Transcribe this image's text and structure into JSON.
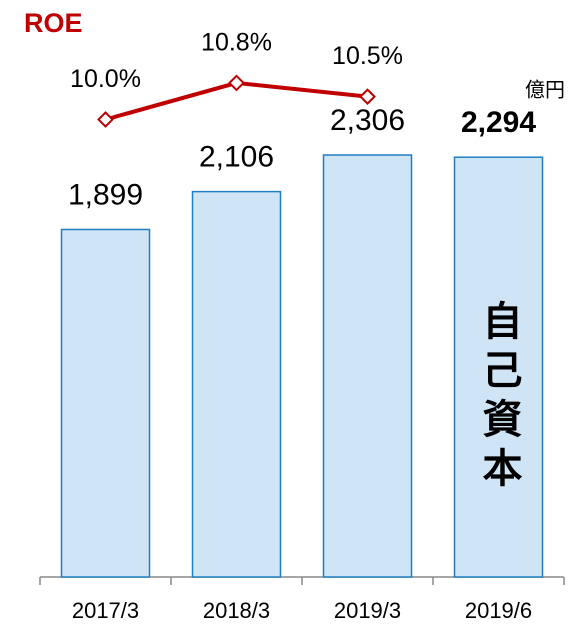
{
  "chart_data": {
    "type": "bar",
    "categories": [
      "2017/3",
      "2018/3",
      "2019/3",
      "2019/6"
    ],
    "unit": "億円",
    "ylim": [
      0,
      3000
    ],
    "y2lim": [
      0,
      12
    ],
    "series": [
      {
        "name": "自己資本",
        "type": "bar",
        "color": "#cfe4f5",
        "edge_color": "#1f7fc1",
        "values": [
          1899,
          2106,
          2306,
          2294
        ],
        "value_labels": [
          "1,899",
          "2,106",
          "2,306",
          "2,294"
        ]
      },
      {
        "name": "ROE",
        "type": "line",
        "axis": "y2",
        "color": "#c00000",
        "values": [
          10.0,
          10.8,
          10.5,
          null
        ],
        "value_labels": [
          "10.0%",
          "10.8%",
          "10.5%",
          null
        ]
      }
    ]
  }
}
